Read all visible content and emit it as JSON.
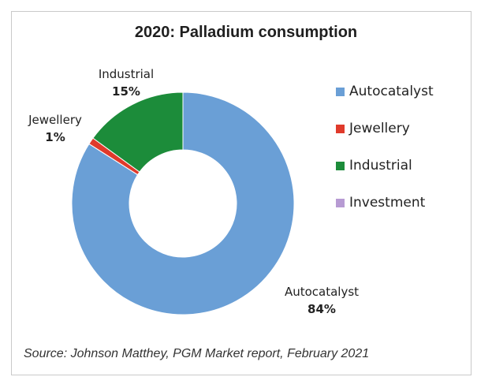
{
  "chart_data": {
    "type": "pie",
    "title": "2020: Palladium consumption",
    "series": [
      {
        "name": "Autocatalyst",
        "value": 84,
        "label": "84%",
        "color": "#6a9fd6"
      },
      {
        "name": "Jewellery",
        "value": 1,
        "label": "1%",
        "color": "#e03a2b"
      },
      {
        "name": "Industrial",
        "value": 15,
        "label": "15%",
        "color": "#1c8c3a"
      },
      {
        "name": "Investment",
        "value": 0,
        "label": "",
        "color": "#b79bd3"
      }
    ],
    "legend_position": "right"
  },
  "source": "Source: Johnson Matthey, PGM Market report, February 2021"
}
